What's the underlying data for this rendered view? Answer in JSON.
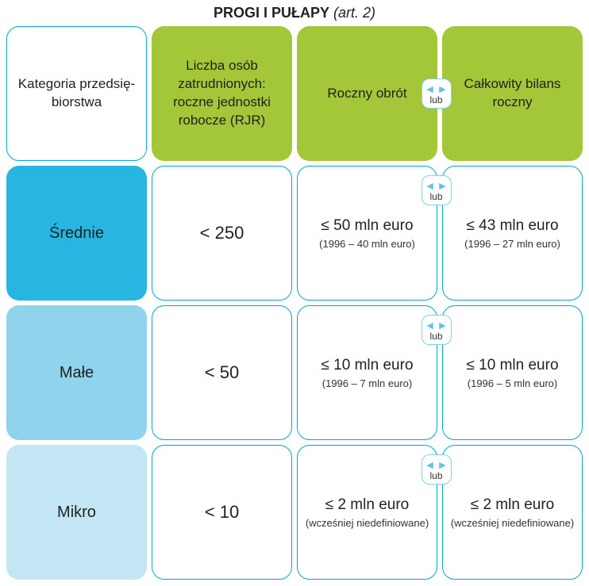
{
  "title": {
    "bold": "PROGI I PUŁAPY",
    "italic": "(art. 2)"
  },
  "colors": {
    "border_cyan": "#00a7d4",
    "header_green": "#a4c639",
    "row_srednie": "#27b6e1",
    "row_male": "#8fd3ec",
    "row_mikro": "#c3e6f4",
    "lub_border": "#7fd0ea"
  },
  "headers": {
    "col1": "Kategoria przedsię­biorstwa",
    "col2": "Liczba osób zatrudnionych: roczne jednostki robocze (RJR)",
    "col3": "Roczny obrót",
    "col4": "Całkowity bilans roczny"
  },
  "or_label": "lub",
  "rows": [
    {
      "key": "srednie",
      "category": "Średnie",
      "bg": "#27b6e1",
      "employees": "< 250",
      "turnover_main": "≤ 50 mln euro",
      "turnover_sub": "(1996 – 40 mln euro)",
      "balance_main": "≤ 43 mln euro",
      "balance_sub": "(1996 – 27 mln euro)"
    },
    {
      "key": "male",
      "category": "Małe",
      "bg": "#8fd3ec",
      "employees": "< 50",
      "turnover_main": "≤ 10 mln euro",
      "turnover_sub": "(1996 – 7 mln euro)",
      "balance_main": "≤ 10 mln euro",
      "balance_sub": "(1996 – 5 mln euro)"
    },
    {
      "key": "mikro",
      "category": "Mikro",
      "bg": "#c3e6f4",
      "employees": "< 10",
      "turnover_main": "≤ 2 mln euro",
      "turnover_sub": "(wcześniej niedefiniowane)",
      "balance_main": "≤ 2 mln euro",
      "balance_sub": "(wcześniej niedefiniowane)"
    }
  ]
}
